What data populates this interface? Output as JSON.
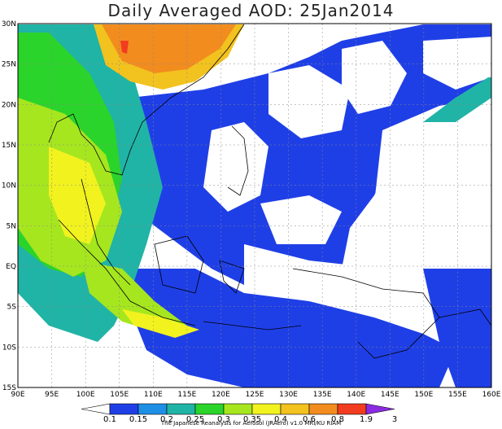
{
  "title": "Daily Averaged AOD: 25Jan2014",
  "credit": "The Japanese Reanalysis for Aerosol (JRAero) v1.0 MRI/KU RIAM",
  "map": {
    "lon_labels": [
      "90E",
      "95E",
      "100E",
      "105E",
      "110E",
      "115E",
      "120E",
      "125E",
      "130E",
      "135E",
      "140E",
      "145E",
      "150E",
      "155E",
      "160E"
    ],
    "lat_labels": [
      "30N",
      "25N",
      "20N",
      "15N",
      "10N",
      "5N",
      "EQ",
      "5S",
      "10S",
      "15S"
    ],
    "lon_range": [
      90,
      160
    ],
    "lat_range": [
      -15,
      30
    ],
    "grid": true
  },
  "colorbar": {
    "levels": [
      "0.1",
      "0.15",
      "0.2",
      "0.25",
      "0.3",
      "0.35",
      "0.4",
      "0.6",
      "0.8",
      "1.9",
      "3"
    ],
    "colors": [
      "#ffffff",
      "#1f3fe6",
      "#1f8fe6",
      "#20b4a6",
      "#2ad42a",
      "#a6e61f",
      "#f2f21f",
      "#f2c21f",
      "#f28c1f",
      "#f23c1f",
      "#8a2be2"
    ]
  }
}
